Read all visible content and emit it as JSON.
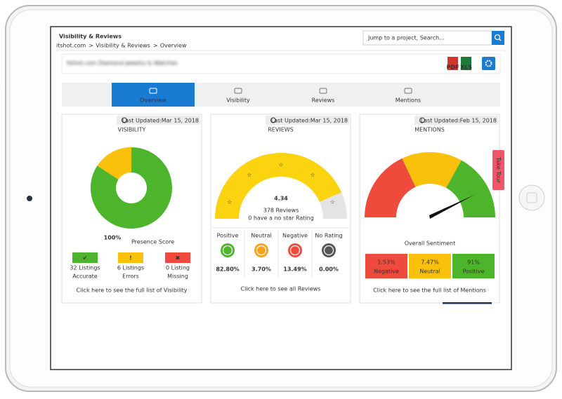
{
  "header": {
    "title": "Visibility & Reviews",
    "breadcrumb": [
      "itshot.com",
      "Visibility & Reviews",
      "Overview"
    ],
    "search_placeholder": "Jump to a project, Search...",
    "company": "Itshot.com Diamond Jewelry & Watches",
    "export": [
      "PDF",
      "XLS"
    ]
  },
  "tabs": [
    "Overview",
    "Visibility",
    "Reviews",
    "Mentions"
  ],
  "visibility": {
    "last_updated": "Last Updated:Mar 15, 2018",
    "title": "VISIBILITY",
    "score": "100%",
    "score_label": "Presence Score",
    "categories": [
      "Accurate",
      "Errors",
      "Missing"
    ],
    "values": [
      32,
      6,
      0
    ],
    "value_labels": [
      "32 Listings",
      "6 Listings",
      "0 Listing"
    ],
    "colors": [
      "#4cb52b",
      "#f9c00c",
      "#ef4b3c"
    ],
    "link": "Click here to see the full list of Visibility"
  },
  "reviews": {
    "last_updated": "Last Updated:Mar 15, 2018",
    "title": "REVIEWS",
    "rating": 4.34,
    "count": "378 Reviews",
    "note": "0 have a no star Rating",
    "categories": [
      "Positive",
      "Neutral",
      "Negative",
      "No Rating"
    ],
    "values": [
      82.8,
      3.7,
      13.49,
      0
    ],
    "value_labels": [
      "82.80%",
      "3.70%",
      "13.49%",
      "0.00%"
    ],
    "colors": [
      "#4cb52b",
      "#f9a31c",
      "#ef4b3c",
      "#555555"
    ],
    "link": "Click here to see all Reviews"
  },
  "mentions": {
    "last_updated": "Last Updated:Feb 15, 2018",
    "title": "MENTIONS",
    "subtitle": "Overall Sentiment",
    "categories": [
      "Negative",
      "Neutral",
      "Positive"
    ],
    "values": [
      1.53,
      7.47,
      91
    ],
    "value_labels": [
      "1.53%",
      "7.47%",
      "91%"
    ],
    "colors": [
      "#ef4b3c",
      "#f9c00c",
      "#4cb52b"
    ],
    "link": "Click here to see the full list of Mentions"
  },
  "take_tour": "Take Tour"
}
